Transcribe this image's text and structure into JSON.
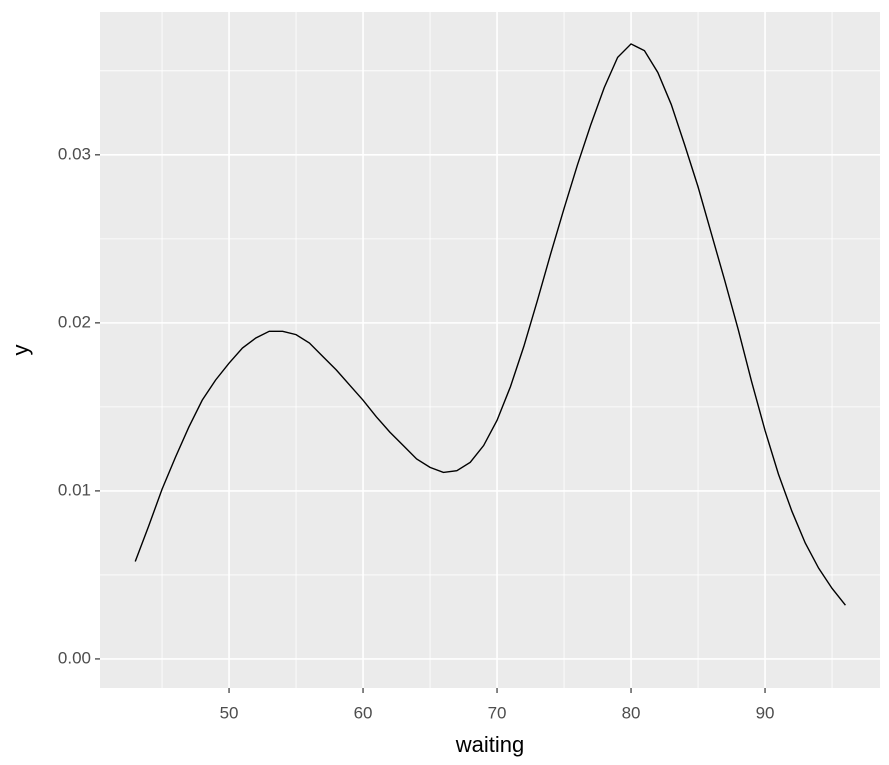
{
  "chart_data": {
    "type": "line",
    "x_label": "waiting",
    "y_label": "y",
    "x": [
      43,
      44,
      45,
      46,
      47,
      48,
      49,
      50,
      51,
      52,
      53,
      54,
      55,
      56,
      57,
      58,
      59,
      60,
      61,
      62,
      63,
      64,
      65,
      66,
      67,
      68,
      69,
      70,
      71,
      72,
      73,
      74,
      75,
      76,
      77,
      78,
      79,
      80,
      81,
      82,
      83,
      84,
      85,
      86,
      87,
      88,
      89,
      90,
      91,
      92,
      93,
      94,
      95,
      96
    ],
    "series": [
      {
        "color": "#000000",
        "values": [
          0.0058,
          0.0079,
          0.0101,
          0.012,
          0.0138,
          0.0154,
          0.0166,
          0.0176,
          0.0185,
          0.0191,
          0.0195,
          0.0195,
          0.0193,
          0.0188,
          0.018,
          0.0172,
          0.0163,
          0.0154,
          0.0144,
          0.0135,
          0.0127,
          0.0119,
          0.0114,
          0.0111,
          0.0112,
          0.0117,
          0.0127,
          0.0142,
          0.0162,
          0.0186,
          0.0213,
          0.0241,
          0.0268,
          0.0294,
          0.0318,
          0.034,
          0.0358,
          0.0366,
          0.0362,
          0.0349,
          0.033,
          0.0306,
          0.0281,
          0.0253,
          0.0225,
          0.0196,
          0.0165,
          0.0136,
          0.011,
          0.0088,
          0.0069,
          0.0054,
          0.0042,
          0.0032
        ]
      }
    ],
    "xlim": [
      40.37,
      98.58
    ],
    "ylim": [
      -0.00173,
      0.0385
    ],
    "xticks": [
      50,
      60,
      70,
      80,
      90
    ],
    "yticks": [
      {
        "value": 0,
        "label": "0.00"
      },
      0.01,
      0.02,
      0.03
    ],
    "x_minor_grid": [
      45,
      55,
      65,
      75,
      85,
      95
    ],
    "y_minor_grid": [
      0.005,
      0.015,
      0.025,
      0.035
    ],
    "grid": true
  }
}
